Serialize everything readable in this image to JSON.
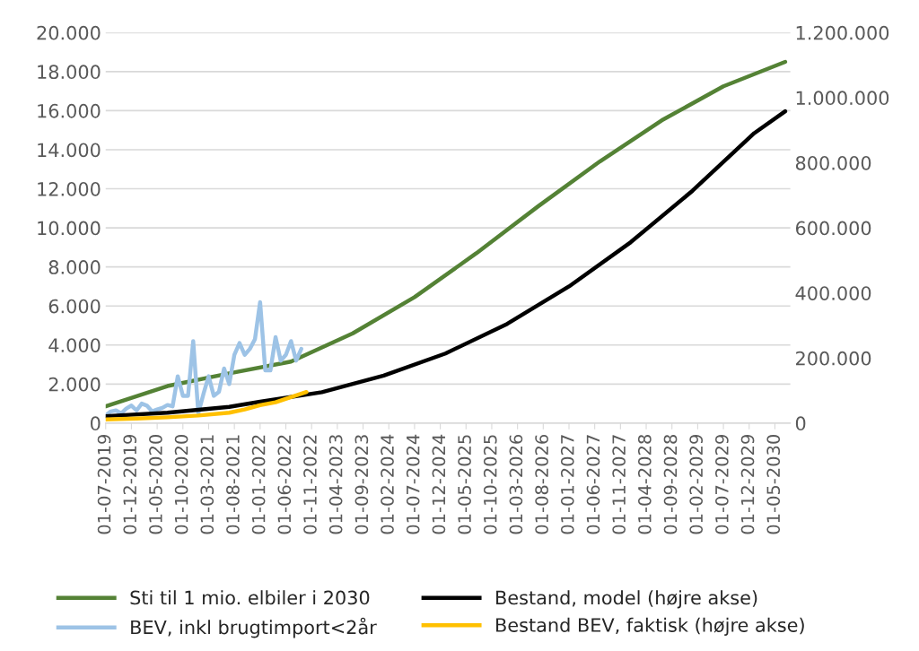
{
  "chart_data": {
    "type": "line",
    "xlim": [
      "2019-07",
      "2030-08"
    ],
    "xticks": [
      {
        "value": "2019-07",
        "label": "01-07-2019"
      },
      {
        "value": "2019-12",
        "label": "01-12-2019"
      },
      {
        "value": "2020-05",
        "label": "01-05-2020"
      },
      {
        "value": "2020-10",
        "label": "01-10-2020"
      },
      {
        "value": "2021-03",
        "label": "01-03-2021"
      },
      {
        "value": "2021-08",
        "label": "01-08-2021"
      },
      {
        "value": "2022-01",
        "label": "01-01-2022"
      },
      {
        "value": "2022-06",
        "label": "01-06-2022"
      },
      {
        "value": "2022-11",
        "label": "01-11-2022"
      },
      {
        "value": "2023-04",
        "label": "01-04-2023"
      },
      {
        "value": "2023-09",
        "label": "01-09-2023"
      },
      {
        "value": "2024-02",
        "label": "01-02-2024"
      },
      {
        "value": "2024-07",
        "label": "01-07-2024"
      },
      {
        "value": "2024-12",
        "label": "01-12-2024"
      },
      {
        "value": "2025-05",
        "label": "01-05-2025"
      },
      {
        "value": "2025-10",
        "label": "01-10-2025"
      },
      {
        "value": "2026-03",
        "label": "01-03-2026"
      },
      {
        "value": "2026-08",
        "label": "01-08-2026"
      },
      {
        "value": "2027-01",
        "label": "01-01-2027"
      },
      {
        "value": "2027-06",
        "label": "01-06-2027"
      },
      {
        "value": "2027-11",
        "label": "01-11-2027"
      },
      {
        "value": "2028-04",
        "label": "01-04-2028"
      },
      {
        "value": "2028-09",
        "label": "01-09-2028"
      },
      {
        "value": "2029-02",
        "label": "01-02-2029"
      },
      {
        "value": "2029-07",
        "label": "01-07-2029"
      },
      {
        "value": "2029-12",
        "label": "01-12-2029"
      },
      {
        "value": "2030-05",
        "label": "01-05-2030"
      }
    ],
    "ylim": [
      0,
      20000
    ],
    "yticks": [
      {
        "value": 0,
        "label": "0"
      },
      {
        "value": 2000,
        "label": "2.000"
      },
      {
        "value": 4000,
        "label": "4.000"
      },
      {
        "value": 6000,
        "label": "6.000"
      },
      {
        "value": 8000,
        "label": "8.000"
      },
      {
        "value": 10000,
        "label": "10.000"
      },
      {
        "value": 12000,
        "label": "12.000"
      },
      {
        "value": 14000,
        "label": "14.000"
      },
      {
        "value": 16000,
        "label": "16.000"
      },
      {
        "value": 18000,
        "label": "18.000"
      },
      {
        "value": 20000,
        "label": "20.000"
      }
    ],
    "y2lim": [
      0,
      1200000
    ],
    "y2ticks": [
      {
        "value": 0,
        "label": "0"
      },
      {
        "value": 200000,
        "label": "200.000"
      },
      {
        "value": 400000,
        "label": "400.000"
      },
      {
        "value": 600000,
        "label": "600.000"
      },
      {
        "value": 800000,
        "label": "800.000"
      },
      {
        "value": 1000000,
        "label": "1.000.000"
      },
      {
        "value": 1200000,
        "label": "1.200.000"
      }
    ],
    "grid": "y",
    "legend": "bottom",
    "marker": "none",
    "line_style": "solid",
    "series": [
      {
        "name": "Sti til 1 mio. elbiler i 2030",
        "color": "#548235",
        "x": [
          "2019-07",
          "2020-07",
          "2021-07",
          "2022-07",
          "2023-07",
          "2024-07",
          "2025-07",
          "2026-07",
          "2027-07",
          "2028-07",
          "2029-07",
          "2030-07"
        ],
        "values": [
          860,
          1900,
          2550,
          3150,
          4600,
          6450,
          8700,
          11100,
          13400,
          15500,
          17250,
          18500
        ]
      },
      {
        "name": "BEV, inkl brugtimport<2år",
        "color": "#9dc3e6",
        "x": [
          "2019-07",
          "2019-08",
          "2019-09",
          "2019-10",
          "2019-11",
          "2019-12",
          "2020-01",
          "2020-02",
          "2020-03",
          "2020-04",
          "2020-05",
          "2020-06",
          "2020-07",
          "2020-08",
          "2020-09",
          "2020-10",
          "2020-11",
          "2020-12",
          "2021-01",
          "2021-02",
          "2021-03",
          "2021-04",
          "2021-05",
          "2021-06",
          "2021-07",
          "2021-08",
          "2021-09",
          "2021-10",
          "2021-11",
          "2021-12",
          "2022-01",
          "2022-02",
          "2022-03",
          "2022-04",
          "2022-05",
          "2022-06",
          "2022-07",
          "2022-08",
          "2022-09"
        ],
        "values": [
          400,
          600,
          650,
          500,
          750,
          900,
          650,
          1000,
          900,
          600,
          700,
          780,
          930,
          860,
          2400,
          1400,
          1400,
          4200,
          500,
          1500,
          2400,
          1400,
          1600,
          2800,
          2000,
          3500,
          4100,
          3500,
          3800,
          4300,
          6200,
          2700,
          2700,
          4400,
          3200,
          3500,
          4200,
          3200,
          3800
        ]
      },
      {
        "name": "Bestand, model (højre akse)",
        "color": "#000000",
        "axis": "y2",
        "x": [
          "2019-07",
          "2020-07",
          "2021-07",
          "2022-01",
          "2023-01",
          "2024-01",
          "2025-01",
          "2026-01",
          "2027-01",
          "2028-01",
          "2029-01",
          "2030-01",
          "2030-07"
        ],
        "values": [
          21500,
          32000,
          50000,
          66000,
          95000,
          146000,
          214000,
          305000,
          420000,
          556000,
          714000,
          891000,
          958000
        ]
      },
      {
        "name": "Bestand BEV, faktisk (højre akse)",
        "color": "#ffc000",
        "axis": "y2",
        "x": [
          "2019-07",
          "2020-01",
          "2020-07",
          "2021-01",
          "2021-07",
          "2021-10",
          "2022-01",
          "2022-04",
          "2022-07",
          "2022-10"
        ],
        "values": [
          11400,
          14000,
          18000,
          23400,
          32000,
          42000,
          55000,
          64000,
          80000,
          95600
        ]
      }
    ]
  }
}
